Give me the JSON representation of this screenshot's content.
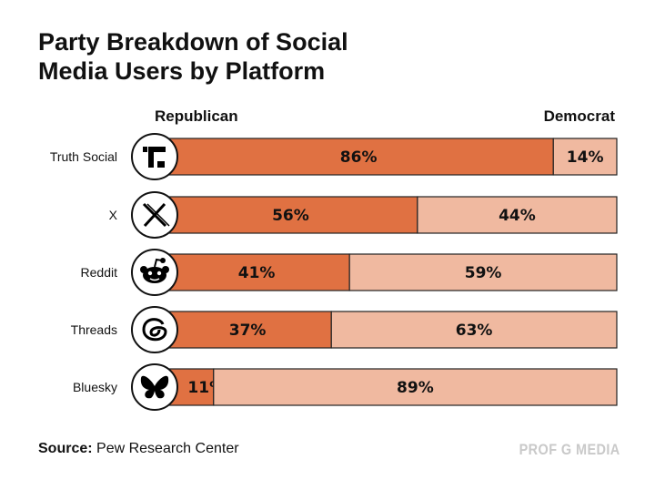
{
  "chart_data": {
    "type": "bar",
    "stacked": true,
    "orientation": "horizontal",
    "title": "Party Breakdown of Social Media Users by Platform",
    "categories": [
      "Truth Social",
      "X",
      "Reddit",
      "Threads",
      "Bluesky"
    ],
    "icons": [
      "truth-social-icon",
      "x-icon",
      "reddit-icon",
      "threads-icon",
      "bluesky-icon"
    ],
    "series": [
      {
        "name": "Republican",
        "values": [
          86,
          56,
          41,
          37,
          11
        ],
        "color": "#E07142"
      },
      {
        "name": "Democrat",
        "values": [
          14,
          44,
          59,
          63,
          89
        ],
        "color": "#F0B9A0"
      }
    ],
    "xlim": [
      0,
      100
    ],
    "value_suffix": "%"
  },
  "source": {
    "label": "Source:",
    "text": "Pew Research Center"
  },
  "watermark": "PROF G MEDIA"
}
